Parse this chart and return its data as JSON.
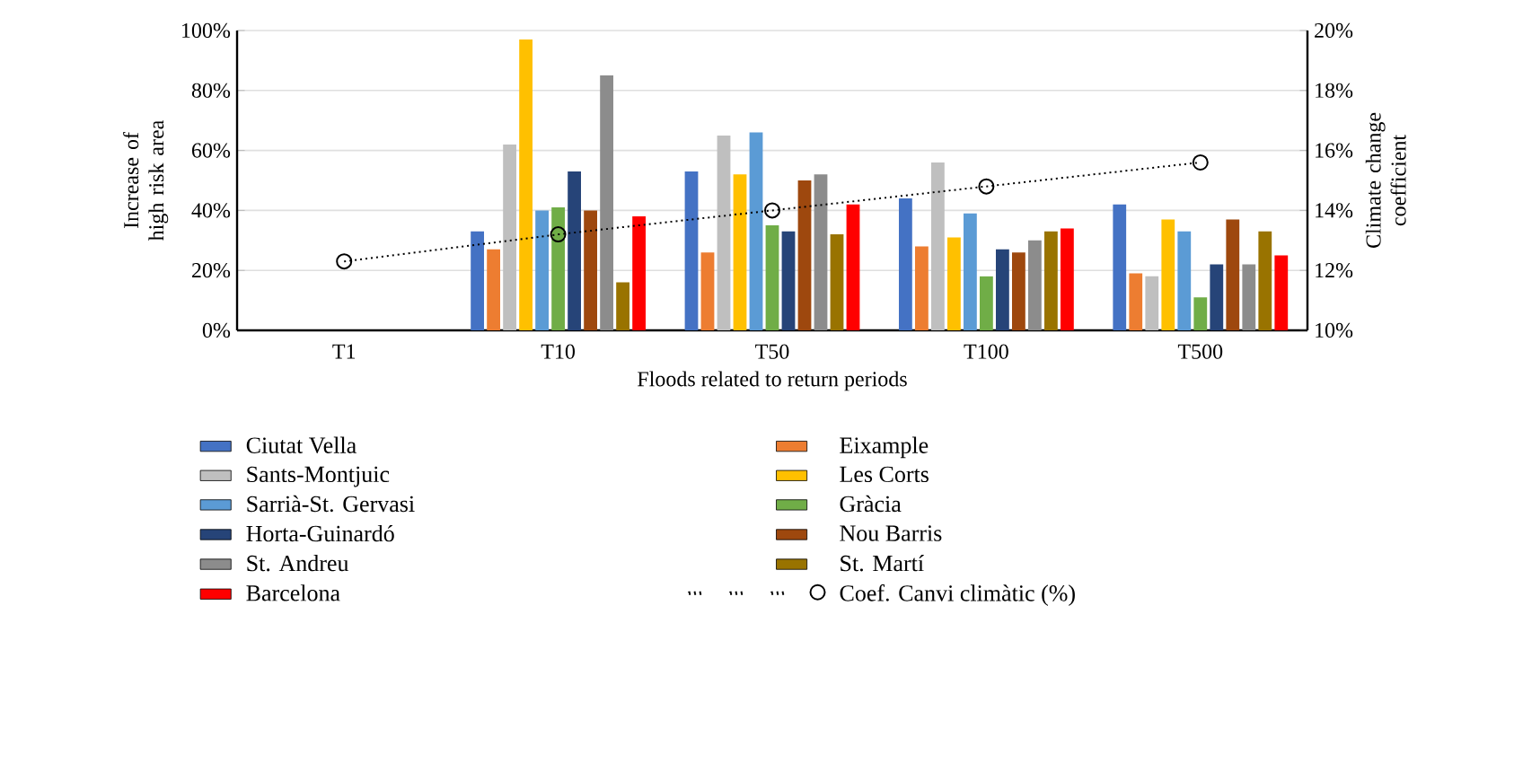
{
  "chart_data": {
    "type": "bar",
    "xlabel": "Floods related to return periods",
    "ylabel": "Increase of high risk area",
    "y2label": "Climate change coefficient",
    "categories": [
      "T1",
      "T10",
      "T50",
      "T100",
      "T500"
    ],
    "series": [
      {
        "name": "Ciutat Vella",
        "color": "#4472c4",
        "values": [
          0,
          33,
          53,
          44,
          42
        ]
      },
      {
        "name": "Eixample",
        "color": "#ed7d31",
        "values": [
          0,
          27,
          26,
          28,
          19
        ]
      },
      {
        "name": "Sants-Montjuic",
        "color": "#bfbfbf",
        "values": [
          0,
          62,
          65,
          56,
          18
        ]
      },
      {
        "name": "Les Corts",
        "color": "#ffc000",
        "values": [
          0,
          97,
          52,
          31,
          37
        ]
      },
      {
        "name": "Sarrià-St. Gervasi",
        "color": "#5b9bd5",
        "values": [
          0,
          40,
          66,
          39,
          33
        ]
      },
      {
        "name": "Gràcia",
        "color": "#70ad47",
        "values": [
          0,
          41,
          35,
          18,
          11
        ]
      },
      {
        "name": "Horta-Guinardó",
        "color": "#264478",
        "values": [
          0,
          53,
          33,
          27,
          22
        ]
      },
      {
        "name": "Nou Barris",
        "color": "#9e480e",
        "values": [
          0,
          40,
          50,
          26,
          37
        ]
      },
      {
        "name": "St. Andreu",
        "color": "#8c8c8c",
        "values": [
          0,
          85,
          52,
          30,
          22
        ]
      },
      {
        "name": "St. Martí",
        "color": "#997300",
        "values": [
          0,
          16,
          32,
          33,
          33
        ]
      },
      {
        "name": "Barcelona",
        "color": "#ff0000",
        "values": [
          0,
          38,
          42,
          34,
          25
        ]
      },
      {
        "name": "Coef. Canvi climàtic (%)",
        "type": "line",
        "axis": "y2",
        "color": "#000000",
        "marker": "circle",
        "line_style": "dotted",
        "values": [
          12.3,
          13.2,
          14.0,
          14.8,
          15.6
        ]
      }
    ],
    "ylim": [
      0,
      100
    ],
    "yticks": [
      {
        "value": 0,
        "label": "0%"
      },
      {
        "value": 20,
        "label": "20%"
      },
      {
        "value": 40,
        "label": "40%"
      },
      {
        "value": 60,
        "label": "60%"
      },
      {
        "value": 80,
        "label": "80%"
      },
      {
        "value": 100,
        "label": "100%"
      }
    ],
    "y2lim": [
      10,
      20
    ],
    "y2ticks": [
      {
        "value": 10,
        "label": "10%"
      },
      {
        "value": 12,
        "label": "12%"
      },
      {
        "value": 14,
        "label": "14%"
      },
      {
        "value": 16,
        "label": "16%"
      },
      {
        "value": 18,
        "label": "18%"
      },
      {
        "value": 20,
        "label": "20%"
      }
    ],
    "grid": "y",
    "legend": "bottom"
  }
}
